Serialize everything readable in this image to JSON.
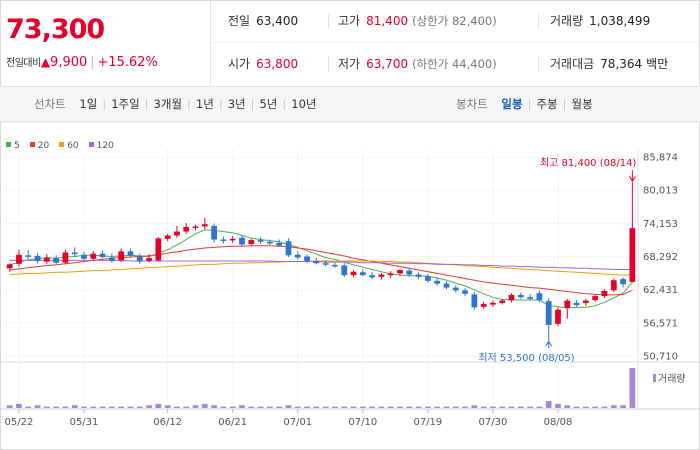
{
  "quote": {
    "current_price": "73,300",
    "change_label": "전일대비",
    "change_amount": "9,900",
    "change_rate": "+15.62%",
    "summary": {
      "prev_close": {
        "label": "전일",
        "value": "63,400"
      },
      "high": {
        "label": "고가",
        "value": "81,400",
        "sub": "(상한가 82,400)"
      },
      "volume": {
        "label": "거래량",
        "value": "1,038,499"
      },
      "open": {
        "label": "시가",
        "value": "63,800"
      },
      "low": {
        "label": "저가",
        "value": "63,700",
        "sub": "(하한가 44,400)"
      },
      "turnover": {
        "label": "거래대금",
        "value": "78,364",
        "unit": "백만"
      }
    }
  },
  "toolbar": {
    "line_title": "선차트",
    "line_periods": [
      "1일",
      "1주일",
      "3개월",
      "1년",
      "3년",
      "5년",
      "10년"
    ],
    "candle_title": "봉차트",
    "candle_periods": [
      "일봉",
      "주봉",
      "월봉"
    ],
    "candle_active": "일봉"
  },
  "legend": [
    {
      "label": "5",
      "color": "#4caf50"
    },
    {
      "label": "20",
      "color": "#e53935"
    },
    {
      "label": "60",
      "color": "#f39c12"
    },
    {
      "label": "120",
      "color": "#9c6ad6"
    }
  ],
  "chart_data": {
    "type": "candlestick",
    "up_color": "#e4002b",
    "down_color": "#2f74d0",
    "y_ticks": [
      85874,
      80013,
      74153,
      68292,
      62431,
      56571,
      50710
    ],
    "y_tick_labels": [
      "85,874",
      "80,013",
      "74,153",
      "68,292",
      "62,431",
      "56,571",
      "50,710"
    ],
    "ylim": [
      50710,
      85874
    ],
    "x_tick_labels": [
      "05/22",
      "05/31",
      "06/12",
      "06/21",
      "07/01",
      "07/10",
      "07/19",
      "07/30",
      "08/08"
    ],
    "x_tick_index": [
      1,
      8,
      17,
      24,
      31,
      38,
      45,
      52,
      59
    ],
    "candles": [
      {
        "o": 66200,
        "h": 67100,
        "l": 65600,
        "c": 66900
      },
      {
        "o": 67000,
        "h": 69500,
        "l": 66500,
        "c": 68600
      },
      {
        "o": 68500,
        "h": 69400,
        "l": 67800,
        "c": 68300
      },
      {
        "o": 68400,
        "h": 68900,
        "l": 67100,
        "c": 67500
      },
      {
        "o": 67400,
        "h": 68700,
        "l": 67000,
        "c": 68100
      },
      {
        "o": 68000,
        "h": 68500,
        "l": 66900,
        "c": 67200
      },
      {
        "o": 67200,
        "h": 69500,
        "l": 67000,
        "c": 69000
      },
      {
        "o": 69000,
        "h": 69900,
        "l": 68200,
        "c": 68700
      },
      {
        "o": 68600,
        "h": 69100,
        "l": 67600,
        "c": 67900
      },
      {
        "o": 67900,
        "h": 69200,
        "l": 67500,
        "c": 68800
      },
      {
        "o": 68800,
        "h": 69300,
        "l": 67900,
        "c": 68200
      },
      {
        "o": 68100,
        "h": 68800,
        "l": 67200,
        "c": 67500
      },
      {
        "o": 67600,
        "h": 69700,
        "l": 67300,
        "c": 69200
      },
      {
        "o": 69200,
        "h": 69700,
        "l": 68200,
        "c": 68400
      },
      {
        "o": 68300,
        "h": 68800,
        "l": 67000,
        "c": 67400
      },
      {
        "o": 67500,
        "h": 68700,
        "l": 67300,
        "c": 68000
      },
      {
        "o": 67600,
        "h": 71700,
        "l": 67400,
        "c": 71500
      },
      {
        "o": 71400,
        "h": 72300,
        "l": 71000,
        "c": 72000
      },
      {
        "o": 72000,
        "h": 73700,
        "l": 71600,
        "c": 72700
      },
      {
        "o": 72700,
        "h": 74200,
        "l": 72300,
        "c": 73500
      },
      {
        "o": 73400,
        "h": 73900,
        "l": 72900,
        "c": 73600
      },
      {
        "o": 73600,
        "h": 75100,
        "l": 73100,
        "c": 74000
      },
      {
        "o": 73700,
        "h": 74100,
        "l": 70800,
        "c": 71300
      },
      {
        "o": 71300,
        "h": 71800,
        "l": 70600,
        "c": 71100
      },
      {
        "o": 71200,
        "h": 71900,
        "l": 70700,
        "c": 71400
      },
      {
        "o": 71600,
        "h": 72000,
        "l": 70200,
        "c": 70400
      },
      {
        "o": 70500,
        "h": 71400,
        "l": 70200,
        "c": 71200
      },
      {
        "o": 71200,
        "h": 71700,
        "l": 70500,
        "c": 70900
      },
      {
        "o": 70900,
        "h": 71300,
        "l": 70300,
        "c": 70600
      },
      {
        "o": 70700,
        "h": 71300,
        "l": 70000,
        "c": 70200
      },
      {
        "o": 71000,
        "h": 71500,
        "l": 68200,
        "c": 68500
      },
      {
        "o": 68600,
        "h": 69200,
        "l": 67800,
        "c": 68100
      },
      {
        "o": 68300,
        "h": 68700,
        "l": 67200,
        "c": 67500
      },
      {
        "o": 67500,
        "h": 68000,
        "l": 66900,
        "c": 67100
      },
      {
        "o": 67100,
        "h": 67600,
        "l": 66500,
        "c": 66900
      },
      {
        "o": 66800,
        "h": 67200,
        "l": 66300,
        "c": 66600
      },
      {
        "o": 66700,
        "h": 67100,
        "l": 64700,
        "c": 65000
      },
      {
        "o": 65000,
        "h": 65900,
        "l": 64600,
        "c": 65600
      },
      {
        "o": 65500,
        "h": 66000,
        "l": 64800,
        "c": 65000
      },
      {
        "o": 65000,
        "h": 65600,
        "l": 64300,
        "c": 64600
      },
      {
        "o": 64700,
        "h": 65400,
        "l": 64200,
        "c": 65100
      },
      {
        "o": 65000,
        "h": 65700,
        "l": 64500,
        "c": 65300
      },
      {
        "o": 65300,
        "h": 66100,
        "l": 64900,
        "c": 65900
      },
      {
        "o": 65800,
        "h": 66300,
        "l": 64700,
        "c": 65100
      },
      {
        "o": 65100,
        "h": 65600,
        "l": 64300,
        "c": 64700
      },
      {
        "o": 64800,
        "h": 65200,
        "l": 63700,
        "c": 64000
      },
      {
        "o": 64000,
        "h": 64500,
        "l": 63100,
        "c": 63500
      },
      {
        "o": 63500,
        "h": 63900,
        "l": 62500,
        "c": 62800
      },
      {
        "o": 62800,
        "h": 63200,
        "l": 61900,
        "c": 62300
      },
      {
        "o": 62300,
        "h": 62700,
        "l": 61300,
        "c": 61700
      },
      {
        "o": 61600,
        "h": 62000,
        "l": 58900,
        "c": 59300
      },
      {
        "o": 59400,
        "h": 60300,
        "l": 59100,
        "c": 59900
      },
      {
        "o": 59800,
        "h": 60500,
        "l": 59400,
        "c": 60100
      },
      {
        "o": 60100,
        "h": 60800,
        "l": 59800,
        "c": 60500
      },
      {
        "o": 60600,
        "h": 61800,
        "l": 60200,
        "c": 61500
      },
      {
        "o": 61500,
        "h": 61900,
        "l": 60800,
        "c": 61100
      },
      {
        "o": 61100,
        "h": 61600,
        "l": 60500,
        "c": 60800
      },
      {
        "o": 61800,
        "h": 62300,
        "l": 60200,
        "c": 60600
      },
      {
        "o": 60400,
        "h": 60900,
        "l": 53500,
        "c": 56200
      },
      {
        "o": 56400,
        "h": 59300,
        "l": 56000,
        "c": 58900
      },
      {
        "o": 59200,
        "h": 60800,
        "l": 57300,
        "c": 60500
      },
      {
        "o": 60100,
        "h": 60600,
        "l": 59400,
        "c": 59700
      },
      {
        "o": 60100,
        "h": 60800,
        "l": 59600,
        "c": 60500
      },
      {
        "o": 60600,
        "h": 61500,
        "l": 60300,
        "c": 61300
      },
      {
        "o": 61300,
        "h": 62500,
        "l": 61000,
        "c": 62200
      },
      {
        "o": 62300,
        "h": 64400,
        "l": 62000,
        "c": 64100
      },
      {
        "o": 64300,
        "h": 64600,
        "l": 62800,
        "c": 63400
      },
      {
        "o": 63800,
        "h": 81400,
        "l": 63700,
        "c": 73300
      }
    ],
    "ma": {
      "5": [
        66800,
        67300,
        67700,
        67900,
        68100,
        68000,
        68200,
        68300,
        68500,
        68500,
        68400,
        68300,
        68400,
        68500,
        68400,
        68300,
        68800,
        69500,
        70300,
        71300,
        72300,
        73000,
        72900,
        72700,
        72500,
        72000,
        71500,
        71300,
        71100,
        70900,
        70400,
        69900,
        69300,
        68700,
        68100,
        67800,
        67300,
        66800,
        66400,
        66000,
        65600,
        65200,
        65000,
        64900,
        64900,
        64800,
        64500,
        64100,
        63600,
        63100,
        62400,
        61700,
        61100,
        60700,
        60600,
        60600,
        60600,
        60600,
        59600,
        59400,
        59200,
        59300,
        59300,
        59600,
        60200,
        61000,
        61800,
        63800
      ],
      "20": [
        65900,
        66100,
        66300,
        66500,
        66700,
        66800,
        67000,
        67200,
        67400,
        67600,
        67800,
        68000,
        68100,
        68200,
        68300,
        68400,
        68600,
        68900,
        69100,
        69400,
        69600,
        69800,
        69900,
        70000,
        70100,
        70100,
        70200,
        70200,
        70200,
        70100,
        70000,
        69800,
        69600,
        69300,
        69000,
        68700,
        68400,
        68000,
        67700,
        67400,
        67100,
        66800,
        66500,
        66200,
        65900,
        65600,
        65300,
        65000,
        64700,
        64400,
        64100,
        63800,
        63600,
        63400,
        63200,
        63000,
        62800,
        62700,
        62500,
        62300,
        62100,
        61900,
        61700,
        61600,
        61500,
        61500,
        61600,
        62300
      ],
      "60": [
        65100,
        65200,
        65300,
        65300,
        65400,
        65500,
        65500,
        65600,
        65700,
        65800,
        65800,
        65900,
        66000,
        66100,
        66200,
        66300,
        66400,
        66500,
        66600,
        66700,
        66800,
        66900,
        66900,
        67000,
        67100,
        67100,
        67200,
        67200,
        67300,
        67300,
        67400,
        67400,
        67400,
        67500,
        67500,
        67500,
        67500,
        67500,
        67500,
        67500,
        67400,
        67400,
        67300,
        67300,
        67200,
        67100,
        67000,
        66900,
        66800,
        66700,
        66600,
        66500,
        66400,
        66300,
        66200,
        66100,
        66000,
        65900,
        65800,
        65700,
        65600,
        65500,
        65400,
        65300,
        65200,
        65100,
        65000,
        65100
      ],
      "120": [
        67600,
        67600,
        67600,
        67600,
        67600,
        67600,
        67600,
        67600,
        67600,
        67600,
        67600,
        67600,
        67600,
        67500,
        67500,
        67500,
        67500,
        67500,
        67500,
        67500,
        67500,
        67500,
        67500,
        67500,
        67500,
        67500,
        67500,
        67500,
        67500,
        67400,
        67400,
        67400,
        67400,
        67400,
        67300,
        67300,
        67300,
        67300,
        67200,
        67200,
        67200,
        67100,
        67100,
        67100,
        67000,
        67000,
        66900,
        66900,
        66900,
        66800,
        66800,
        66700,
        66700,
        66600,
        66600,
        66500,
        66500,
        66400,
        66400,
        66300,
        66300,
        66200,
        66200,
        66100,
        66100,
        66000,
        66000,
        66000
      ]
    },
    "volume_label": "거래량",
    "volumes": [
      2,
      3,
      1,
      2,
      1,
      1,
      1,
      2,
      1,
      1,
      1,
      1,
      1,
      1,
      1,
      2,
      3,
      2,
      1,
      1,
      2,
      3,
      2,
      1,
      1,
      2,
      1,
      1,
      1,
      1,
      2,
      1,
      1,
      1,
      1,
      1,
      1,
      1,
      1,
      1,
      1,
      1,
      1,
      1,
      1,
      1,
      1,
      1,
      1,
      1,
      2,
      1,
      1,
      1,
      1,
      1,
      1,
      1,
      5,
      3,
      2,
      1,
      1,
      1,
      1,
      2,
      2,
      29
    ],
    "high_annotation": "최고 81,400 (08/14)",
    "low_annotation": "최저 53,500 (08/05)",
    "high_index": 67,
    "low_index": 58
  }
}
